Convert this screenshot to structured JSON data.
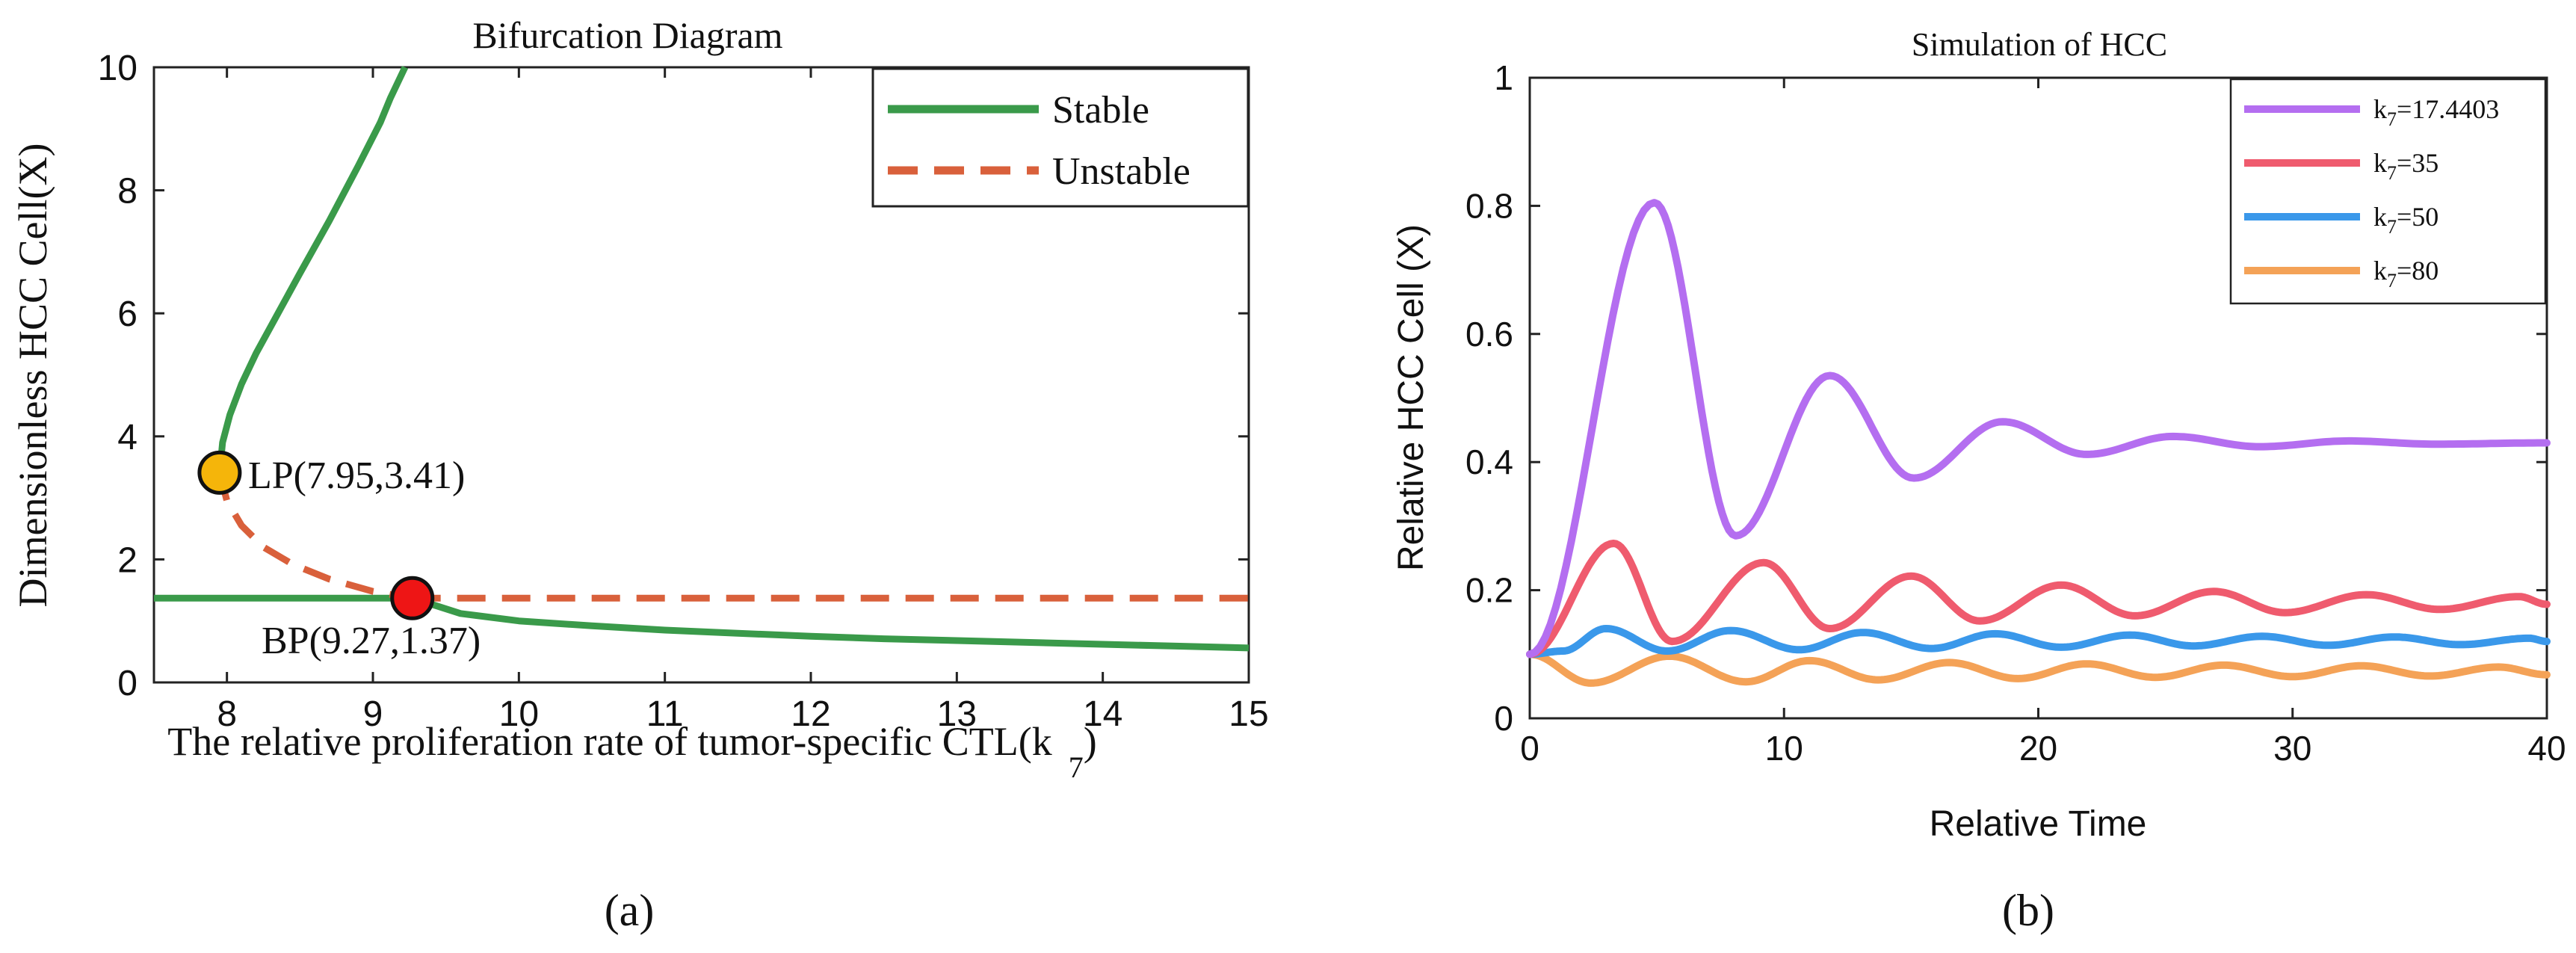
{
  "chart_data": [
    {
      "type": "line",
      "panel_label": "(a)",
      "title": "Bifurcation Diagram",
      "xlabel_main": "The relative proliferation rate of tumor-specific CTL(k",
      "xlabel_sub": "7",
      "xlabel_close": ")",
      "ylabel": "Dimensionless HCC Cell(X)",
      "xlim": [
        7.5,
        15
      ],
      "ylim": [
        0,
        10
      ],
      "xticks": [
        "8",
        "9",
        "10",
        "11",
        "12",
        "13",
        "14",
        "15"
      ],
      "yticks": [
        "0",
        "2",
        "4",
        "6",
        "8",
        "10"
      ],
      "legend": {
        "position": "top-right",
        "entries": [
          "Stable",
          "Unstable"
        ]
      },
      "colors": {
        "stable": "#3a9a4a",
        "unstable": "#d9603b",
        "lp": "#f5b50a",
        "bp": "#ee1515"
      },
      "series": [
        {
          "name": "Stable",
          "style": "solid",
          "x": [
            7.95,
            7.97,
            8.02,
            8.1,
            8.2,
            8.35,
            8.5,
            8.7,
            8.9,
            9.05,
            9.12,
            9.22
          ],
          "y": [
            3.41,
            3.9,
            4.35,
            4.85,
            5.35,
            6.0,
            6.65,
            7.5,
            8.4,
            9.1,
            9.5,
            10.0
          ]
        },
        {
          "name": "Stable",
          "style": "solid",
          "x": [
            7.5,
            8.0,
            9.27
          ],
          "y": [
            1.37,
            1.37,
            1.37
          ]
        },
        {
          "name": "Stable",
          "style": "solid",
          "x": [
            9.27,
            9.6,
            10.0,
            10.5,
            11.0,
            11.5,
            12.0,
            12.5,
            13.0,
            13.5,
            14.0,
            14.5,
            15.0
          ],
          "y": [
            1.37,
            1.12,
            1.0,
            0.92,
            0.85,
            0.8,
            0.75,
            0.71,
            0.68,
            0.65,
            0.62,
            0.59,
            0.56
          ]
        },
        {
          "name": "Unstable",
          "style": "dashed",
          "x": [
            7.95,
            8.0,
            8.1,
            8.25,
            8.45,
            8.7,
            9.0,
            9.27
          ],
          "y": [
            3.41,
            2.95,
            2.55,
            2.2,
            1.92,
            1.68,
            1.48,
            1.37
          ]
        },
        {
          "name": "Unstable",
          "style": "dashed",
          "x": [
            9.27,
            15.0
          ],
          "y": [
            1.37,
            1.37
          ]
        }
      ],
      "points": [
        {
          "name": "LP",
          "x": 7.95,
          "y": 3.41,
          "label": "LP(7.95,3.41)"
        },
        {
          "name": "BP",
          "x": 9.27,
          "y": 1.37,
          "label": "BP(9.27,1.37)"
        }
      ]
    },
    {
      "type": "line",
      "panel_label": "(b)",
      "title": "Simulation of HCC",
      "xlabel": "Relative Time",
      "ylabel": "Relative HCC Cell (X)",
      "xlim": [
        0,
        40
      ],
      "ylim": [
        0,
        1
      ],
      "xticks": [
        "0",
        "10",
        "20",
        "30",
        "40"
      ],
      "yticks": [
        "0",
        "0.2",
        "0.4",
        "0.6",
        "0.8",
        "1"
      ],
      "legend": {
        "position": "top-right"
      },
      "series": [
        {
          "name": "k7=17.4403",
          "legend_main": "k",
          "legend_sub": "7",
          "legend_rest": "=17.4403",
          "color": "#b46ef0",
          "x0": 0.1,
          "start": 0.1,
          "eq": 0.43,
          "peaks": [
            [
              4.9,
              0.805
            ],
            [
              8.1,
              0.285
            ],
            [
              11.8,
              0.535
            ],
            [
              15.1,
              0.375
            ],
            [
              18.6,
              0.463
            ],
            [
              21.9,
              0.412
            ],
            [
              25.3,
              0.44
            ],
            [
              28.7,
              0.424
            ],
            [
              32.2,
              0.433
            ],
            [
              35.6,
              0.428
            ],
            [
              40.0,
              0.43
            ]
          ]
        },
        {
          "name": "k7=35",
          "legend_main": "k",
          "legend_sub": "7",
          "legend_rest": "=35",
          "color": "#ef5b6e",
          "x0": 0.1,
          "start": 0.1,
          "eq": 0.18,
          "peaks": [
            [
              3.3,
              0.273
            ],
            [
              5.6,
              0.12
            ],
            [
              9.2,
              0.243
            ],
            [
              11.8,
              0.14
            ],
            [
              15.0,
              0.222
            ],
            [
              17.7,
              0.152
            ],
            [
              20.9,
              0.208
            ],
            [
              23.8,
              0.16
            ],
            [
              26.9,
              0.198
            ],
            [
              29.7,
              0.165
            ],
            [
              32.9,
              0.193
            ],
            [
              35.8,
              0.17
            ],
            [
              38.9,
              0.19
            ],
            [
              40.0,
              0.178
            ]
          ]
        },
        {
          "name": "k7=50",
          "legend_main": "k",
          "legend_sub": "7",
          "legend_rest": "=50",
          "color": "#3a98ea",
          "x0": 0.1,
          "start": 0.1,
          "eq": 0.12,
          "peaks": [
            [
              1.3,
              0.105
            ],
            [
              3.0,
              0.14
            ],
            [
              5.4,
              0.105
            ],
            [
              7.9,
              0.137
            ],
            [
              10.6,
              0.107
            ],
            [
              13.1,
              0.134
            ],
            [
              15.8,
              0.109
            ],
            [
              18.3,
              0.132
            ],
            [
              20.9,
              0.111
            ],
            [
              23.6,
              0.13
            ],
            [
              26.1,
              0.113
            ],
            [
              28.8,
              0.128
            ],
            [
              31.4,
              0.114
            ],
            [
              34.0,
              0.127
            ],
            [
              36.6,
              0.115
            ],
            [
              39.3,
              0.125
            ],
            [
              40.0,
              0.12
            ]
          ]
        },
        {
          "name": "k7=80",
          "legend_main": "k",
          "legend_sub": "7",
          "legend_rest": "=80",
          "color": "#f4a257",
          "x0": 0.1,
          "start": 0.1,
          "eq": 0.07,
          "peaks": [
            [
              2.4,
              0.055
            ],
            [
              5.5,
              0.097
            ],
            [
              8.5,
              0.057
            ],
            [
              11.0,
              0.09
            ],
            [
              13.7,
              0.06
            ],
            [
              16.5,
              0.087
            ],
            [
              19.2,
              0.062
            ],
            [
              21.9,
              0.085
            ],
            [
              24.6,
              0.064
            ],
            [
              27.3,
              0.083
            ],
            [
              30.0,
              0.065
            ],
            [
              32.7,
              0.082
            ],
            [
              35.4,
              0.066
            ],
            [
              38.1,
              0.08
            ],
            [
              40.0,
              0.068
            ]
          ]
        }
      ]
    }
  ]
}
